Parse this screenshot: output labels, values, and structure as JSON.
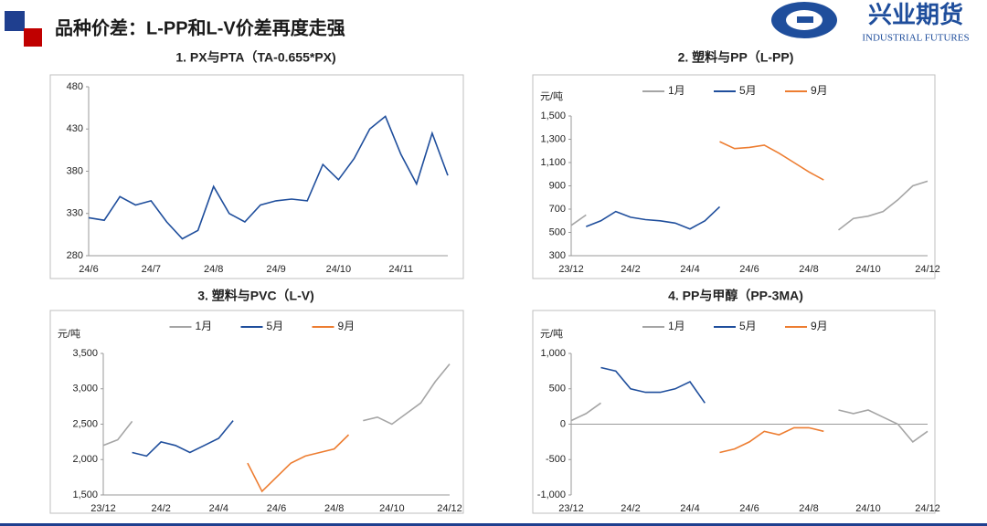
{
  "header": {
    "title": "品种价差：L-PP和L-V价差再度走强",
    "logo_text": "兴业期货",
    "logo_subtext": "INDUSTRIAL FUTURES"
  },
  "chart_data": [
    {
      "type": "line",
      "title": "1. PX与PTA（TA-0.655*PX)",
      "categories": [
        "24/6",
        null,
        null,
        null,
        "24/7",
        null,
        null,
        null,
        "24/8",
        null,
        null,
        null,
        "24/9",
        null,
        null,
        null,
        "24/10",
        null,
        null,
        null,
        "24/11",
        null,
        null,
        null
      ],
      "values": [
        325,
        322,
        350,
        340,
        345,
        320,
        300,
        310,
        362,
        330,
        320,
        340,
        345,
        347,
        345,
        388,
        370,
        395,
        430,
        445,
        400,
        365,
        425,
        375
      ],
      "color": "#1f4e9c",
      "ylim": [
        280,
        480
      ],
      "yticks": [
        280,
        330,
        380,
        430,
        480
      ]
    },
    {
      "type": "line",
      "title": "2. 塑料与PP（L-PP)",
      "unit": "元/吨",
      "legend": "top",
      "categories": [
        "23/12",
        null,
        null,
        null,
        "24/2",
        null,
        null,
        null,
        "24/4",
        null,
        null,
        null,
        "24/6",
        null,
        null,
        null,
        "24/8",
        null,
        null,
        null,
        "24/10",
        null,
        null,
        null,
        "24/12"
      ],
      "series": [
        {
          "name": "1月",
          "color": "#a5a5a5",
          "values": [
            560,
            650,
            null,
            null,
            null,
            null,
            null,
            null,
            null,
            null,
            null,
            null,
            null,
            null,
            null,
            null,
            null,
            null,
            520,
            620,
            640,
            680,
            780,
            900,
            940
          ]
        },
        {
          "name": "5月",
          "color": "#1f4e9c",
          "values": [
            null,
            550,
            600,
            680,
            630,
            610,
            600,
            580,
            530,
            600,
            720,
            null,
            null,
            null,
            null,
            null,
            null,
            null,
            null,
            null,
            null,
            null,
            null,
            null,
            null
          ]
        },
        {
          "name": "9月",
          "color": "#ed7d31",
          "values": [
            null,
            null,
            null,
            null,
            null,
            null,
            null,
            null,
            null,
            null,
            1280,
            1220,
            1230,
            1250,
            1180,
            1100,
            1020,
            950,
            null,
            null,
            null,
            null,
            null,
            null,
            null
          ]
        }
      ],
      "ylim": [
        300,
        1500
      ],
      "yticks": [
        300,
        500,
        700,
        900,
        {
          "value": 1100,
          "label": "1,100"
        },
        {
          "value": 1300,
          "label": "1,300"
        },
        {
          "value": 1500,
          "label": "1,500"
        }
      ]
    },
    {
      "type": "line",
      "title": "3. 塑料与PVC（L-V)",
      "unit": "元/吨",
      "legend": "top",
      "categories": [
        "23/12",
        null,
        null,
        null,
        "24/2",
        null,
        null,
        null,
        "24/4",
        null,
        null,
        null,
        "24/6",
        null,
        null,
        null,
        "24/8",
        null,
        null,
        null,
        "24/10",
        null,
        null,
        null,
        "24/12"
      ],
      "series": [
        {
          "name": "1月",
          "color": "#a5a5a5",
          "values": [
            2200,
            2280,
            2540,
            null,
            null,
            null,
            null,
            null,
            null,
            null,
            null,
            null,
            null,
            null,
            null,
            null,
            null,
            null,
            2550,
            2600,
            2500,
            2650,
            2800,
            3100,
            3350
          ]
        },
        {
          "name": "5月",
          "color": "#1f4e9c",
          "values": [
            null,
            null,
            2100,
            2050,
            2250,
            2200,
            2100,
            2200,
            2300,
            2550,
            null,
            null,
            null,
            null,
            null,
            null,
            null,
            null,
            null,
            null,
            null,
            null,
            null,
            null,
            null
          ]
        },
        {
          "name": "9月",
          "color": "#ed7d31",
          "values": [
            null,
            null,
            null,
            null,
            null,
            null,
            null,
            null,
            null,
            null,
            1950,
            1550,
            1750,
            1950,
            2050,
            2100,
            2150,
            2350,
            null,
            null,
            null,
            null,
            null,
            null,
            null
          ]
        }
      ],
      "ylim": [
        1500,
        3500
      ],
      "yticks": [
        {
          "value": 1500,
          "label": "1,500"
        },
        {
          "value": 2000,
          "label": "2,000"
        },
        {
          "value": 2500,
          "label": "2,500"
        },
        {
          "value": 3000,
          "label": "3,000"
        },
        {
          "value": 3500,
          "label": "3,500"
        }
      ]
    },
    {
      "type": "line",
      "title": "4. PP与甲醇（PP-3MA)",
      "unit": "元/吨",
      "legend": "top",
      "categories": [
        "23/12",
        null,
        null,
        null,
        "24/2",
        null,
        null,
        null,
        "24/4",
        null,
        null,
        null,
        "24/6",
        null,
        null,
        null,
        "24/8",
        null,
        null,
        null,
        "24/10",
        null,
        null,
        null,
        "24/12"
      ],
      "series": [
        {
          "name": "1月",
          "color": "#a5a5a5",
          "values": [
            50,
            150,
            300,
            null,
            null,
            null,
            null,
            null,
            null,
            null,
            null,
            null,
            null,
            null,
            null,
            null,
            null,
            null,
            200,
            150,
            200,
            100,
            0,
            -250,
            -100
          ]
        },
        {
          "name": "5月",
          "color": "#1f4e9c",
          "values": [
            null,
            null,
            800,
            750,
            500,
            450,
            450,
            500,
            600,
            300,
            null,
            null,
            null,
            null,
            null,
            null,
            null,
            null,
            null,
            null,
            null,
            null,
            null,
            null,
            null
          ]
        },
        {
          "name": "9月",
          "color": "#ed7d31",
          "values": [
            null,
            null,
            null,
            null,
            null,
            null,
            null,
            null,
            null,
            null,
            -400,
            -350,
            -250,
            -100,
            -150,
            -50,
            -50,
            -100,
            null,
            null,
            null,
            null,
            null,
            null,
            null
          ]
        }
      ],
      "ylim": [
        -1000,
        1000
      ],
      "yticks": [
        {
          "value": -1000,
          "label": "-1,000"
        },
        -500,
        0,
        500,
        {
          "value": 1000,
          "label": "1,000"
        }
      ]
    }
  ]
}
